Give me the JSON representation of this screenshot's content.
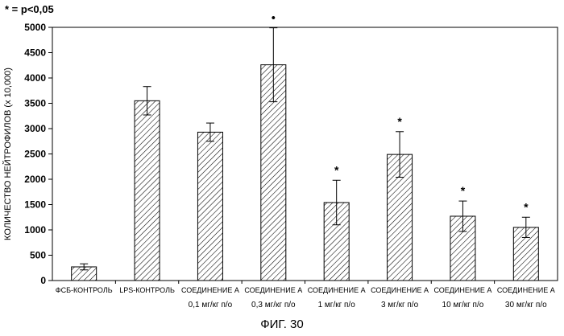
{
  "legend_note": "* = p<0,05",
  "figure_caption": "ФИГ. 30",
  "chart_data": {
    "type": "bar",
    "title": "",
    "xlabel": "",
    "ylabel": "КОЛИЧЕСТВО НЕЙТРОФИЛОВ (x 10,000)",
    "ylim": [
      0,
      5000
    ],
    "yticks": [
      0,
      500,
      1000,
      1500,
      2000,
      2500,
      3000,
      3500,
      4000,
      4500,
      5000
    ],
    "grid": false,
    "bar_fill": "diagonal-hatch",
    "categories": [
      {
        "line1": "ФСБ-КОНТРОЛЬ",
        "line2": ""
      },
      {
        "line1": "LPS-КОНТРОЛЬ",
        "line2": ""
      },
      {
        "line1": "СОЕДИНЕНИЕ А",
        "line2": "0,1 мг/кг п/о"
      },
      {
        "line1": "СОЕДИНЕНИЕ А",
        "line2": "0,3 мг/кг п/о"
      },
      {
        "line1": "СОЕДИНЕНИЕ А",
        "line2": "1 мг/кг п/о"
      },
      {
        "line1": "СОЕДИНЕНИЕ А",
        "line2": "3 мг/кг п/о"
      },
      {
        "line1": "СОЕДИНЕНИЕ А",
        "line2": "10 мг/кг п/о"
      },
      {
        "line1": "СОЕДИНЕНИЕ А",
        "line2": "30 мг/кг п/о"
      }
    ],
    "values": [
      270,
      3550,
      2930,
      4260,
      1540,
      2490,
      1270,
      1050
    ],
    "errors": [
      60,
      280,
      180,
      730,
      440,
      450,
      300,
      200
    ],
    "significance_marks": [
      "",
      "",
      "",
      "•",
      "*",
      "*",
      "*",
      "*"
    ]
  }
}
